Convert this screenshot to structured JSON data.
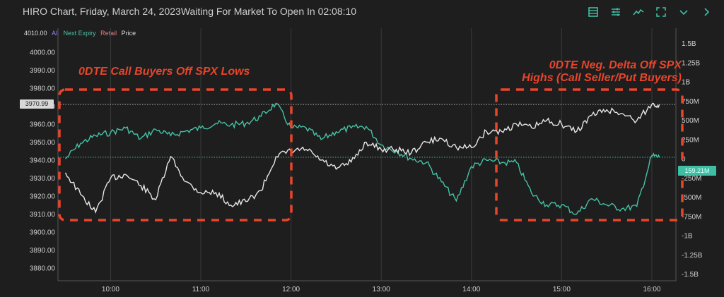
{
  "header": {
    "title": "HIRO Chart, Friday, March 24, 2023",
    "status": "Waiting For Market To Open In 02:08:10",
    "icons": [
      "table-icon",
      "sliders-icon",
      "line-chart-icon",
      "fullscreen-icon",
      "chevron-down-icon",
      "chevron-right-icon"
    ]
  },
  "legend": {
    "top_value": "4010.00",
    "all": "All",
    "next_expiry": "Next Expiry",
    "retail": "Retail",
    "price": "Price"
  },
  "annotations": {
    "left": "0DTE Call Buyers Off SPX Lows",
    "right_line1": "0DTE Neg. Delta Off SPX",
    "right_line2": "Highs (Call Seller/Put Buyers)"
  },
  "tags": {
    "price_last": "3970.99",
    "hiro_last": "159.21M"
  },
  "colors": {
    "background": "#1e1e1e",
    "price_line": "#e6e6e6",
    "hiro_line": "#45c2a5",
    "annotation": "#e8452b",
    "grid": "#3a3a3a"
  },
  "chart_data": {
    "type": "line",
    "x_ticks": [
      "10:00",
      "11:00",
      "12:00",
      "13:00",
      "14:00",
      "15:00",
      "16:00"
    ],
    "left_axis": {
      "label": "",
      "ticks": [
        "3880.00",
        "3890.00",
        "3900.00",
        "3910.00",
        "3920.00",
        "3930.00",
        "3940.00",
        "3950.00",
        "3960.00",
        "3970.00",
        "3980.00",
        "3990.00",
        "4000.00"
      ],
      "ylim": [
        3872,
        4010
      ]
    },
    "right_axis": {
      "label": "",
      "ticks": [
        "1.5B",
        "1.25B",
        "1B",
        "750M",
        "500M",
        "250M",
        "0",
        "-250M",
        "-500M",
        "-750M",
        "-1B",
        "-1.25B",
        "-1.5B"
      ],
      "ylim": [
        -1.6,
        1.6
      ]
    },
    "series": [
      {
        "name": "Price",
        "axis": "left",
        "times": [
          "09:30",
          "09:40",
          "09:50",
          "10:00",
          "10:10",
          "10:20",
          "10:30",
          "10:40",
          "10:50",
          "11:00",
          "11:10",
          "11:20",
          "11:30",
          "11:40",
          "11:50",
          "12:00",
          "12:10",
          "12:20",
          "12:30",
          "12:40",
          "12:50",
          "13:00",
          "13:10",
          "13:20",
          "13:30",
          "13:40",
          "13:50",
          "14:00",
          "14:10",
          "14:20",
          "14:30",
          "14:40",
          "14:50",
          "15:00",
          "15:10",
          "15:20",
          "15:30",
          "15:40",
          "15:50",
          "16:00",
          "16:05"
        ],
        "values": [
          3933,
          3921,
          3911,
          3930,
          3932,
          3926,
          3918,
          3942,
          3928,
          3922,
          3922,
          3915,
          3917,
          3923,
          3942,
          3945,
          3946,
          3940,
          3935,
          3939,
          3950,
          3946,
          3946,
          3944,
          3950,
          3952,
          3947,
          3947,
          3956,
          3956,
          3960,
          3958,
          3962,
          3960,
          3956,
          3965,
          3968,
          3966,
          3962,
          3971,
          3971
        ]
      },
      {
        "name": "Next Expiry",
        "axis": "right",
        "times": [
          "09:30",
          "09:40",
          "09:50",
          "10:00",
          "10:10",
          "10:20",
          "10:30",
          "10:40",
          "10:50",
          "11:00",
          "11:10",
          "11:20",
          "11:30",
          "11:40",
          "11:50",
          "12:00",
          "12:10",
          "12:20",
          "12:30",
          "12:40",
          "12:50",
          "13:00",
          "13:10",
          "13:20",
          "13:30",
          "13:40",
          "13:50",
          "14:00",
          "14:10",
          "14:20",
          "14:30",
          "14:40",
          "14:50",
          "15:00",
          "15:10",
          "15:20",
          "15:30",
          "15:40",
          "15:50",
          "16:00",
          "16:05"
        ],
        "values": [
          0,
          0.2,
          0.3,
          0.34,
          0.4,
          0.26,
          0.38,
          0.3,
          0.36,
          0.4,
          0.46,
          0.44,
          0.46,
          0.55,
          0.72,
          0.4,
          0.4,
          0.25,
          0.35,
          0.4,
          0.42,
          0.18,
          0.1,
          0.0,
          -0.05,
          -0.3,
          -0.55,
          -0.1,
          -0.02,
          -0.05,
          -0.05,
          -0.45,
          -0.6,
          -0.6,
          -0.72,
          -0.52,
          -0.6,
          -0.65,
          -0.62,
          0.04,
          0.02
        ]
      }
    ],
    "title": "",
    "xlabel": "",
    "ylabel": "",
    "grid": true,
    "legend_position": "top-left"
  }
}
